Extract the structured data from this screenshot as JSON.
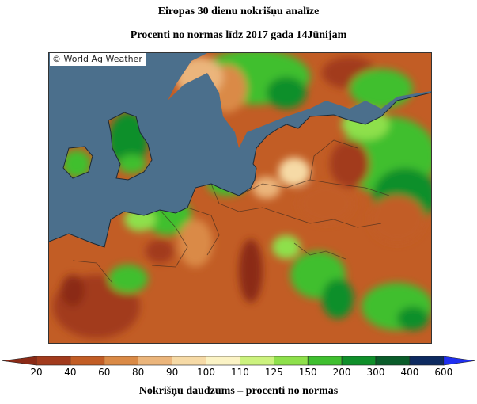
{
  "header": {
    "title": "Eiropas 30 dienu nokrišņu analīze",
    "subtitle": "Procenti no normas līdz 2017 gada 14Jūnijam"
  },
  "map": {
    "copyright": "© World Ag Weather",
    "ocean_color": "#4b6f8c",
    "border_color": "#3a2a20"
  },
  "legend": {
    "title": "Nokrišņu daudzums – procenti no normas",
    "under_color": "#8b2a16",
    "over_color": "#1f2ff0",
    "bins": [
      {
        "label": "20",
        "color": "#a23b1d"
      },
      {
        "label": "40",
        "color": "#c25d25"
      },
      {
        "label": "60",
        "color": "#da8a46"
      },
      {
        "label": "80",
        "color": "#ebb57b"
      },
      {
        "label": "90",
        "color": "#f6daa6"
      },
      {
        "label": "100",
        "color": "#fbf3c5"
      },
      {
        "label": "110",
        "color": "#ccf27e"
      },
      {
        "label": "125",
        "color": "#8ee04b"
      },
      {
        "label": "150",
        "color": "#3fbf2f"
      },
      {
        "label": "200",
        "color": "#0f8f2a"
      },
      {
        "label": "300",
        "color": "#0a5c2a"
      },
      {
        "label": "400",
        "color": "#0d2a60"
      },
      {
        "label": "600",
        "color": "#0a1aa8"
      }
    ]
  }
}
